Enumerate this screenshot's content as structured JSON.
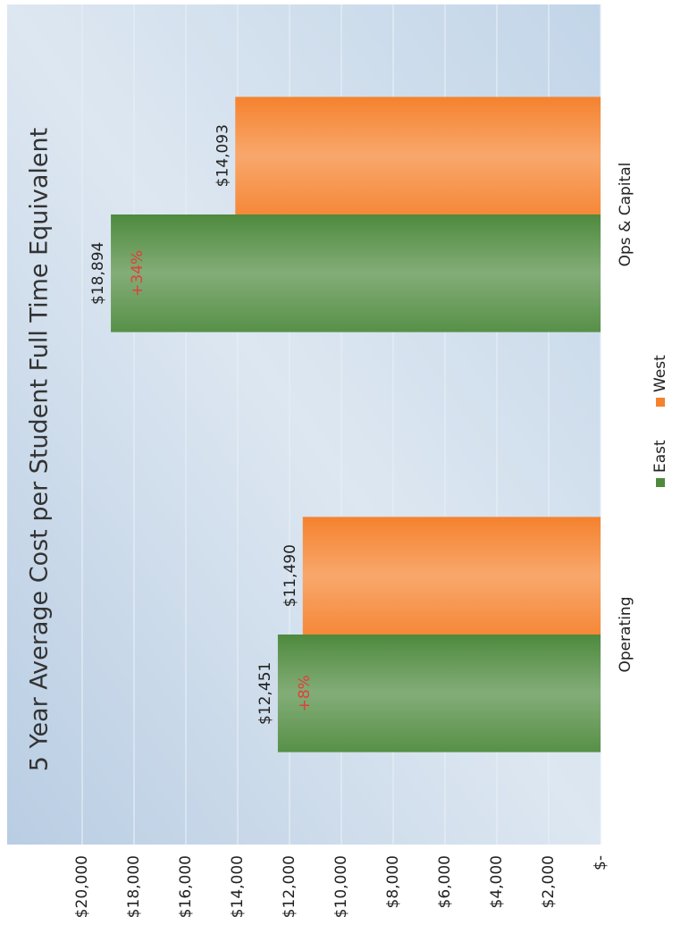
{
  "chart_data": {
    "type": "bar",
    "title": "5 Year Average Cost per Student Full Time Equivalent",
    "categories": [
      "Operating",
      "Ops & Capital"
    ],
    "series": [
      {
        "name": "East",
        "color": "#4e8a3e",
        "values": [
          12451,
          18894
        ],
        "value_labels": [
          "$12,451",
          "$18,894"
        ]
      },
      {
        "name": "West",
        "color": "#f5822e",
        "values": [
          11490,
          14093
        ],
        "value_labels": [
          "$11,490",
          "$14,093"
        ]
      }
    ],
    "annotations": [
      {
        "text": "+8%"
      },
      {
        "text": "+34%"
      }
    ],
    "ylim": [
      0,
      20000
    ],
    "yticks": [
      {
        "value": 0,
        "label": "$-"
      },
      {
        "value": 2000,
        "label": "$2,000"
      },
      {
        "value": 4000,
        "label": "$4,000"
      },
      {
        "value": 6000,
        "label": "$6,000"
      },
      {
        "value": 8000,
        "label": "$8,000"
      },
      {
        "value": 10000,
        "label": "$10,000"
      },
      {
        "value": 12000,
        "label": "$12,000"
      },
      {
        "value": 14000,
        "label": "$14,000"
      },
      {
        "value": 16000,
        "label": "$16,000"
      },
      {
        "value": 18000,
        "label": "$18,000"
      },
      {
        "value": 20000,
        "label": "$20,000"
      }
    ],
    "grid": true,
    "legend": "bottom"
  }
}
